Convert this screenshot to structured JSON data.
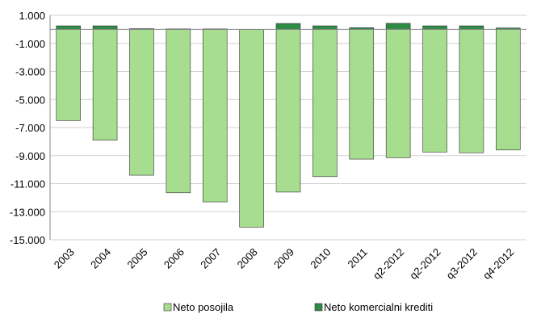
{
  "chart_data": {
    "type": "stacked_bar",
    "categories": [
      "2003",
      "2004",
      "2005",
      "2006",
      "2007",
      "2008",
      "2009",
      "2010",
      "2011",
      "q2-2012",
      "q2-2012",
      "q3-2012",
      "q4-2012"
    ],
    "series": [
      {
        "name": "Neto posojila",
        "color": "#a6dd8e",
        "values": [
          -6500,
          -7900,
          -10400,
          -11650,
          -12300,
          -14100,
          -11600,
          -10500,
          -9250,
          -9150,
          -8750,
          -8800,
          -8600
        ]
      },
      {
        "name": "Neto komercialni krediti",
        "color": "#2e8b45",
        "values": [
          250,
          250,
          50,
          30,
          30,
          0,
          420,
          250,
          120,
          430,
          250,
          250,
          100
        ]
      }
    ],
    "ylim": [
      -15000,
      1000
    ],
    "yticks": [
      {
        "value": 1000,
        "label": "1.000"
      },
      {
        "value": -1000,
        "label": "-1.000"
      },
      {
        "value": -3000,
        "label": "-3.000"
      },
      {
        "value": -5000,
        "label": "-5.000"
      },
      {
        "value": -7000,
        "label": "-7.000"
      },
      {
        "value": -9000,
        "label": "-9.000"
      },
      {
        "value": -11000,
        "label": "-11.000"
      },
      {
        "value": -13000,
        "label": "-13.000"
      },
      {
        "value": -15000,
        "label": "-15.000"
      }
    ],
    "grid": true,
    "legend": "bottom"
  }
}
